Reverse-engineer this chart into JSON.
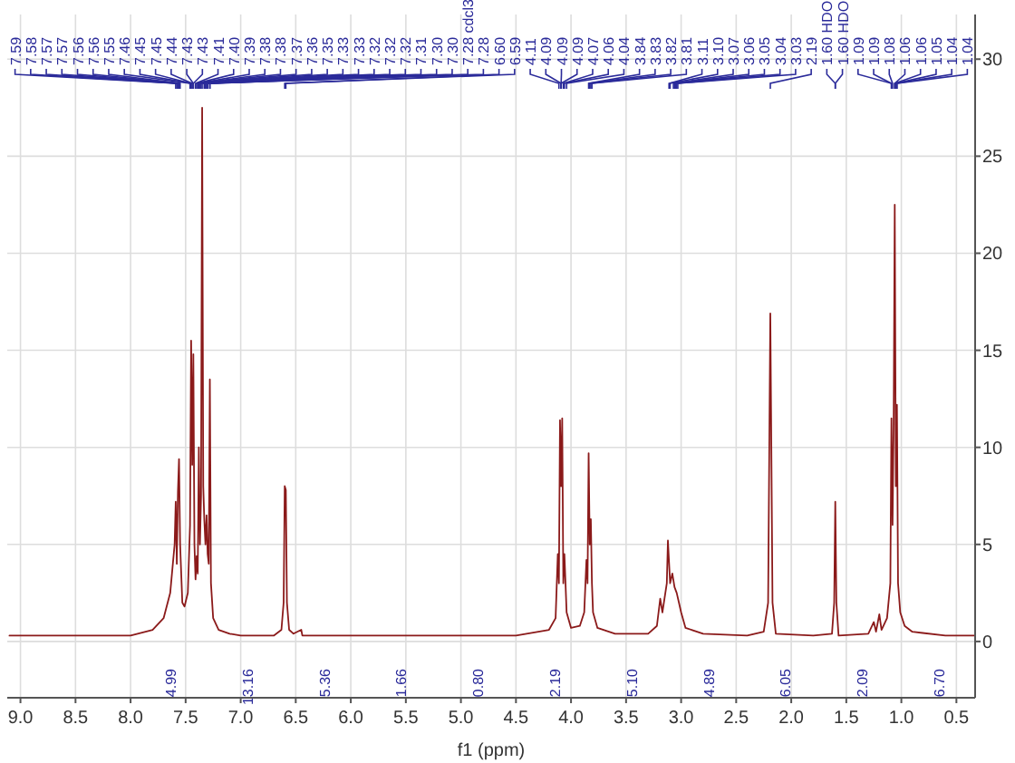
{
  "chart_data": {
    "type": "line",
    "xlabel": "f1 (ppm)",
    "xlim": [
      9.12,
      0.33
    ],
    "ylim": [
      -2.9,
      32.3
    ],
    "xticks": [
      {
        "value": 9,
        "label": "9.0"
      },
      8.5,
      {
        "value": 8,
        "label": "8.0"
      },
      7.5,
      {
        "value": 7,
        "label": "7.0"
      },
      6.5,
      {
        "value": 6,
        "label": "6.0"
      },
      5.5,
      {
        "value": 5,
        "label": "5.0"
      },
      4.5,
      {
        "value": 4,
        "label": "4.0"
      },
      3.5,
      {
        "value": 3,
        "label": "3.0"
      },
      2.5,
      {
        "value": 2,
        "label": "2.0"
      },
      1.5,
      {
        "value": 1,
        "label": "1.0"
      },
      0.5
    ],
    "yticks": [
      0,
      5,
      10,
      15,
      20,
      25,
      30
    ],
    "grid": true,
    "line_style": "solid",
    "x": [
      9.1,
      8.0,
      7.8,
      7.7,
      7.64,
      7.6,
      7.59,
      7.58,
      7.57,
      7.56,
      7.55,
      7.53,
      7.51,
      7.48,
      7.46,
      7.45,
      7.44,
      7.43,
      7.42,
      7.41,
      7.4,
      7.39,
      7.38,
      7.37,
      7.36,
      7.35,
      7.34,
      7.33,
      7.32,
      7.31,
      7.3,
      7.29,
      7.28,
      7.27,
      7.25,
      7.2,
      7.1,
      7.0,
      6.7,
      6.63,
      6.61,
      6.6,
      6.59,
      6.58,
      6.56,
      6.52,
      6.45,
      6.44,
      6.0,
      5.0,
      4.5,
      4.2,
      4.14,
      4.12,
      4.11,
      4.1,
      4.09,
      4.08,
      4.07,
      4.06,
      4.04,
      4.0,
      3.92,
      3.88,
      3.86,
      3.85,
      3.84,
      3.83,
      3.82,
      3.81,
      3.8,
      3.76,
      3.6,
      3.3,
      3.22,
      3.19,
      3.17,
      3.13,
      3.12,
      3.1,
      3.08,
      3.06,
      3.04,
      3.02,
      3.0,
      2.96,
      2.8,
      2.4,
      2.25,
      2.21,
      2.19,
      2.17,
      2.14,
      1.8,
      1.63,
      1.61,
      1.6,
      1.59,
      1.57,
      1.3,
      1.25,
      1.23,
      1.2,
      1.18,
      1.13,
      1.1,
      1.09,
      1.08,
      1.07,
      1.06,
      1.05,
      1.04,
      1.03,
      1.01,
      0.97,
      0.9,
      0.6,
      0.33
    ],
    "series": [
      {
        "color": "#8b1a1a",
        "values": [
          0.3,
          0.3,
          0.6,
          1.2,
          2.5,
          5,
          7.2,
          4,
          7.7,
          9.4,
          5,
          2,
          1.8,
          2.5,
          6,
          15.5,
          9.1,
          14.8,
          5,
          3.2,
          4.4,
          3.5,
          10.0,
          5,
          7.5,
          27.5,
          8,
          6.2,
          5,
          6.5,
          4.5,
          4.0,
          13.5,
          3,
          1.2,
          0.6,
          0.4,
          0.3,
          0.3,
          0.6,
          2,
          8.0,
          7.8,
          2,
          0.6,
          0.4,
          0.6,
          0.3,
          0.3,
          0.3,
          0.3,
          0.6,
          1.2,
          4.5,
          3,
          11.4,
          8,
          11.5,
          3,
          4.5,
          1.5,
          0.7,
          0.8,
          1.5,
          4.2,
          3,
          9.7,
          5,
          6.3,
          3,
          1.5,
          0.7,
          0.4,
          0.4,
          0.8,
          2.2,
          1.5,
          3,
          5.2,
          3,
          3.5,
          2.8,
          2.5,
          2.0,
          1.5,
          0.7,
          0.4,
          0.3,
          0.5,
          2,
          16.9,
          2,
          0.4,
          0.3,
          0.4,
          2,
          7.2,
          2,
          0.3,
          0.4,
          1.0,
          0.5,
          1.4,
          0.6,
          1.2,
          3,
          11.5,
          6,
          11.2,
          22.5,
          8,
          12.2,
          3,
          1.5,
          0.8,
          0.5,
          0.3,
          0.3
        ]
      }
    ],
    "annotations": [
      {
        "text": "7.59",
        "x": 7.59
      },
      {
        "text": "7.58",
        "x": 7.58
      },
      {
        "text": "7.57",
        "x": 7.57
      },
      {
        "text": "7.57",
        "x": 7.57
      },
      {
        "text": "7.56",
        "x": 7.56
      },
      {
        "text": "7.56",
        "x": 7.56
      },
      {
        "text": "7.55",
        "x": 7.55
      },
      {
        "text": "7.46",
        "x": 7.46
      },
      {
        "text": "7.45",
        "x": 7.45
      },
      {
        "text": "7.45",
        "x": 7.45
      },
      {
        "text": "7.44",
        "x": 7.44
      },
      {
        "text": "7.43",
        "x": 7.43
      },
      {
        "text": "7.43",
        "x": 7.43
      },
      {
        "text": "7.41",
        "x": 7.41
      },
      {
        "text": "7.40",
        "x": 7.4
      },
      {
        "text": "7.39",
        "x": 7.39
      },
      {
        "text": "7.38",
        "x": 7.38
      },
      {
        "text": "7.38",
        "x": 7.38
      },
      {
        "text": "7.37",
        "x": 7.37
      },
      {
        "text": "7.36",
        "x": 7.36
      },
      {
        "text": "7.35",
        "x": 7.35
      },
      {
        "text": "7.33",
        "x": 7.33
      },
      {
        "text": "7.33",
        "x": 7.33
      },
      {
        "text": "7.32",
        "x": 7.32
      },
      {
        "text": "7.32",
        "x": 7.32
      },
      {
        "text": "7.32",
        "x": 7.32
      },
      {
        "text": "7.31",
        "x": 7.31
      },
      {
        "text": "7.30",
        "x": 7.3
      },
      {
        "text": "7.30",
        "x": 7.3
      },
      {
        "text": "7.28 cdcl3",
        "x": 7.28
      },
      {
        "text": "7.28",
        "x": 7.28
      },
      {
        "text": "6.60",
        "x": 6.6
      },
      {
        "text": "6.59",
        "x": 6.59
      },
      {
        "text": "4.11",
        "x": 4.11
      },
      {
        "text": "4.09",
        "x": 4.09
      },
      {
        "text": "4.09",
        "x": 4.09
      },
      {
        "text": "4.09",
        "x": 4.09
      },
      {
        "text": "4.07",
        "x": 4.07
      },
      {
        "text": "4.06",
        "x": 4.06
      },
      {
        "text": "4.04",
        "x": 4.04
      },
      {
        "text": "3.84",
        "x": 3.84
      },
      {
        "text": "3.83",
        "x": 3.83
      },
      {
        "text": "3.82",
        "x": 3.82
      },
      {
        "text": "3.81",
        "x": 3.81
      },
      {
        "text": "3.11",
        "x": 3.11
      },
      {
        "text": "3.10",
        "x": 3.1
      },
      {
        "text": "3.07",
        "x": 3.07
      },
      {
        "text": "3.06",
        "x": 3.06
      },
      {
        "text": "3.05",
        "x": 3.05
      },
      {
        "text": "3.04",
        "x": 3.04
      },
      {
        "text": "3.03",
        "x": 3.03
      },
      {
        "text": "2.19",
        "x": 2.19
      },
      {
        "text": "1.60 HDO",
        "x": 1.6
      },
      {
        "text": "1.60 HDO",
        "x": 1.6
      },
      {
        "text": "1.09",
        "x": 1.09
      },
      {
        "text": "1.09",
        "x": 1.09
      },
      {
        "text": "1.08",
        "x": 1.08
      },
      {
        "text": "1.06",
        "x": 1.06
      },
      {
        "text": "1.06",
        "x": 1.06
      },
      {
        "text": "1.05",
        "x": 1.05
      },
      {
        "text": "1.04",
        "x": 1.04
      },
      {
        "text": "1.04",
        "x": 1.04
      },
      "4.99",
      "13.16",
      "5.36",
      "1.66",
      "0.80",
      "2.19",
      "5.10",
      "4.89",
      "6.05",
      "2.09",
      "6.70"
    ]
  }
}
